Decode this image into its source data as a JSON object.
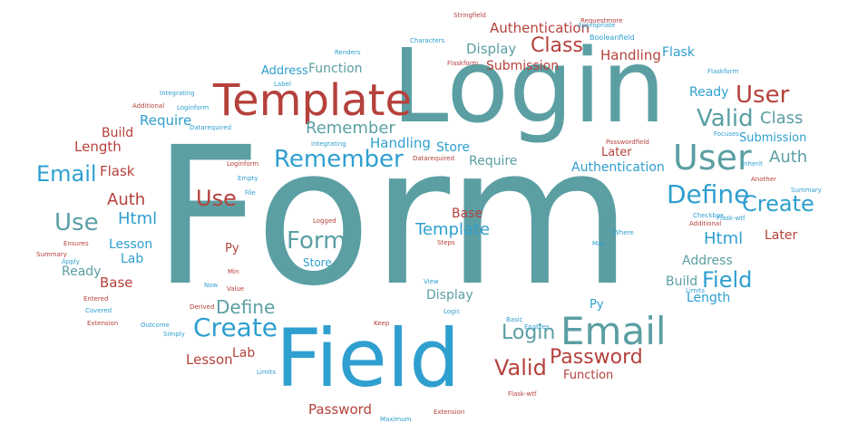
{
  "words": [
    {
      "text": "Form",
      "color": "teal"
    },
    {
      "text": "Login",
      "color": "teal"
    },
    {
      "text": "Field",
      "color": "blue"
    },
    {
      "text": "Template",
      "color": "red"
    },
    {
      "text": "Email",
      "color": "teal"
    },
    {
      "text": "User",
      "color": "teal"
    },
    {
      "text": "Remember",
      "color": "blue"
    },
    {
      "text": "Define",
      "color": "blue"
    },
    {
      "text": "Create",
      "color": "blue"
    },
    {
      "text": "Valid",
      "color": "teal"
    },
    {
      "text": "User",
      "color": "red"
    },
    {
      "text": "Password",
      "color": "red"
    },
    {
      "text": "Valid",
      "color": "red"
    },
    {
      "text": "Login",
      "color": "teal"
    },
    {
      "text": "Create",
      "color": "blue"
    },
    {
      "text": "Define",
      "color": "teal"
    },
    {
      "text": "Field",
      "color": "blue"
    },
    {
      "text": "Email",
      "color": "blue"
    },
    {
      "text": "Use",
      "color": "teal"
    },
    {
      "text": "Use",
      "color": "red"
    },
    {
      "text": "Form",
      "color": "teal"
    },
    {
      "text": "Remember",
      "color": "teal"
    },
    {
      "text": "Class",
      "color": "red"
    },
    {
      "text": "Class",
      "color": "teal"
    },
    {
      "text": "Auth",
      "color": "red"
    },
    {
      "text": "Auth",
      "color": "teal"
    },
    {
      "text": "Html",
      "color": "blue"
    },
    {
      "text": "Html",
      "color": "blue"
    },
    {
      "text": "Template",
      "color": "blue"
    },
    {
      "text": "Authentication",
      "color": "red"
    },
    {
      "text": "Authentication",
      "color": "blue"
    },
    {
      "text": "Handling",
      "color": "red"
    },
    {
      "text": "Handling",
      "color": "blue"
    },
    {
      "text": "Display",
      "color": "teal"
    },
    {
      "text": "Display",
      "color": "teal"
    },
    {
      "text": "Submission",
      "color": "red"
    },
    {
      "text": "Submission",
      "color": "blue"
    },
    {
      "text": "Flask",
      "color": "blue"
    },
    {
      "text": "Flask",
      "color": "red"
    },
    {
      "text": "Require",
      "color": "blue"
    },
    {
      "text": "Require",
      "color": "teal"
    },
    {
      "text": "Store",
      "color": "blue"
    },
    {
      "text": "Store",
      "color": "blue"
    },
    {
      "text": "Function",
      "color": "teal"
    },
    {
      "text": "Function",
      "color": "red"
    },
    {
      "text": "Address",
      "color": "blue"
    },
    {
      "text": "Address",
      "color": "teal"
    },
    {
      "text": "Ready",
      "color": "blue"
    },
    {
      "text": "Ready",
      "color": "teal"
    },
    {
      "text": "Length",
      "color": "red"
    },
    {
      "text": "Length",
      "color": "blue"
    },
    {
      "text": "Build",
      "color": "red"
    },
    {
      "text": "Build",
      "color": "teal"
    },
    {
      "text": "Lesson",
      "color": "blue"
    },
    {
      "text": "Lesson",
      "color": "red"
    },
    {
      "text": "Lab",
      "color": "blue"
    },
    {
      "text": "Lab",
      "color": "red"
    },
    {
      "text": "Base",
      "color": "red"
    },
    {
      "text": "Base",
      "color": "red"
    },
    {
      "text": "Later",
      "color": "red"
    },
    {
      "text": "Later",
      "color": "red"
    },
    {
      "text": "Password",
      "color": "red"
    },
    {
      "text": "Py",
      "color": "red"
    },
    {
      "text": "Py",
      "color": "blue"
    },
    {
      "text": "Requestmore",
      "color": "red"
    },
    {
      "text": "Stringfield",
      "color": "red"
    },
    {
      "text": "Characters",
      "color": "blue"
    },
    {
      "text": "Booleanfield",
      "color": "blue"
    },
    {
      "text": "Appropriate",
      "color": "blue"
    },
    {
      "text": "Flaskform",
      "color": "blue"
    },
    {
      "text": "Flaskform",
      "color": "red"
    },
    {
      "text": "Renders",
      "color": "blue"
    },
    {
      "text": "Label",
      "color": "blue"
    },
    {
      "text": "Integrating",
      "color": "blue"
    },
    {
      "text": "Integrating",
      "color": "blue"
    },
    {
      "text": "Additional",
      "color": "red"
    },
    {
      "text": "Loginform",
      "color": "blue"
    },
    {
      "text": "Loginform",
      "color": "red"
    },
    {
      "text": "Datarequired",
      "color": "blue"
    },
    {
      "text": "Datarequired",
      "color": "red"
    },
    {
      "text": "Passwordfield",
      "color": "red"
    },
    {
      "text": "Focuses",
      "color": "blue"
    },
    {
      "text": "Inherit",
      "color": "blue"
    },
    {
      "text": "Another",
      "color": "red"
    },
    {
      "text": "Summary",
      "color": "blue"
    },
    {
      "text": "Checkbox",
      "color": "blue"
    },
    {
      "text": "Flask-wtf",
      "color": "blue"
    },
    {
      "text": "Ensures",
      "color": "red"
    },
    {
      "text": "Apply",
      "color": "blue"
    },
    {
      "text": "Logged",
      "color": "red"
    },
    {
      "text": "Steps",
      "color": "red"
    },
    {
      "text": "Empty",
      "color": "blue"
    },
    {
      "text": "File",
      "color": "blue"
    },
    {
      "text": "Min",
      "color": "red"
    },
    {
      "text": "Max",
      "color": "blue"
    },
    {
      "text": "Value",
      "color": "red"
    },
    {
      "text": "Now",
      "color": "blue"
    },
    {
      "text": "View",
      "color": "blue"
    },
    {
      "text": "Entered",
      "color": "red"
    },
    {
      "text": "Covered",
      "color": "blue"
    },
    {
      "text": "Extension",
      "color": "red"
    },
    {
      "text": "Derived",
      "color": "red"
    },
    {
      "text": "Outcome",
      "color": "blue"
    },
    {
      "text": "Simply",
      "color": "blue"
    },
    {
      "text": "Keep",
      "color": "red"
    },
    {
      "text": "Logic",
      "color": "blue"
    },
    {
      "text": "Limits",
      "color": "blue"
    },
    {
      "text": "Maximum",
      "color": "blue"
    },
    {
      "text": "Flask-wtf",
      "color": "red"
    },
    {
      "text": "Extension",
      "color": "red"
    },
    {
      "text": "Basic",
      "color": "blue"
    },
    {
      "text": "Enables",
      "color": "blue"
    },
    {
      "text": "Additional",
      "color": "red"
    },
    {
      "text": "Summary",
      "color": "red"
    },
    {
      "text": "Where",
      "color": "blue"
    },
    {
      "text": "Limits",
      "color": "blue"
    }
  ]
}
